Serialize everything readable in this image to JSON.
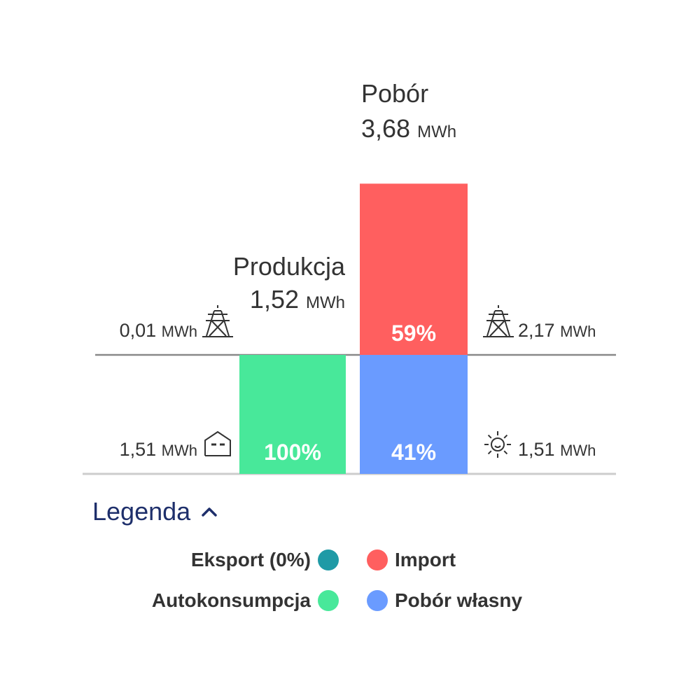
{
  "colors": {
    "eksport": "#1f9aa6",
    "autokonsumpcja": "#48e89a",
    "import": "#ff5f5f",
    "pobor_wlasny": "#6a9bff",
    "baseline": "#888888",
    "legend_title": "#1e2f6b"
  },
  "chart_data": {
    "type": "bar",
    "categories": [
      "Produkcja",
      "Pobór"
    ],
    "stacks": [
      {
        "category": "Produkcja",
        "title": "Produkcja",
        "total": "1,52",
        "unit": "MWh",
        "segments": [
          {
            "series": "Eksport (0%)",
            "percent": 0,
            "label": "",
            "color_key": "eksport"
          },
          {
            "series": "Autokonsumpcja",
            "percent": 100,
            "label": "100%",
            "color_key": "autokonsumpcja"
          }
        ]
      },
      {
        "category": "Pobór",
        "title": "Pobór",
        "total": "3,68",
        "unit": "MWh",
        "segments": [
          {
            "series": "Import",
            "percent": 59,
            "label": "59%",
            "color_key": "import"
          },
          {
            "series": "Pobór własny",
            "percent": 41,
            "label": "41%",
            "color_key": "pobor_wlasny"
          }
        ]
      }
    ],
    "annotations": [
      {
        "side": "left",
        "level": "upper",
        "value": "0,01",
        "unit": "MWh",
        "icon": "power-tower-icon"
      },
      {
        "side": "left",
        "level": "lower",
        "value": "1,51",
        "unit": "MWh",
        "icon": "house-icon"
      },
      {
        "side": "right",
        "level": "upper",
        "value": "2,17",
        "unit": "MWh",
        "icon": "power-tower-icon"
      },
      {
        "side": "right",
        "level": "lower",
        "value": "1,51",
        "unit": "MWh",
        "icon": "sun-icon"
      }
    ]
  },
  "legend": {
    "title": "Legenda",
    "toggle_icon": "chevron-up-icon",
    "items": [
      {
        "label": "Eksport (0%)",
        "color_key": "eksport"
      },
      {
        "label": "Import",
        "color_key": "import"
      },
      {
        "label": "Autokonsumpcja",
        "color_key": "autokonsumpcja"
      },
      {
        "label": "Pobór własny",
        "color_key": "pobor_wlasny"
      }
    ]
  }
}
